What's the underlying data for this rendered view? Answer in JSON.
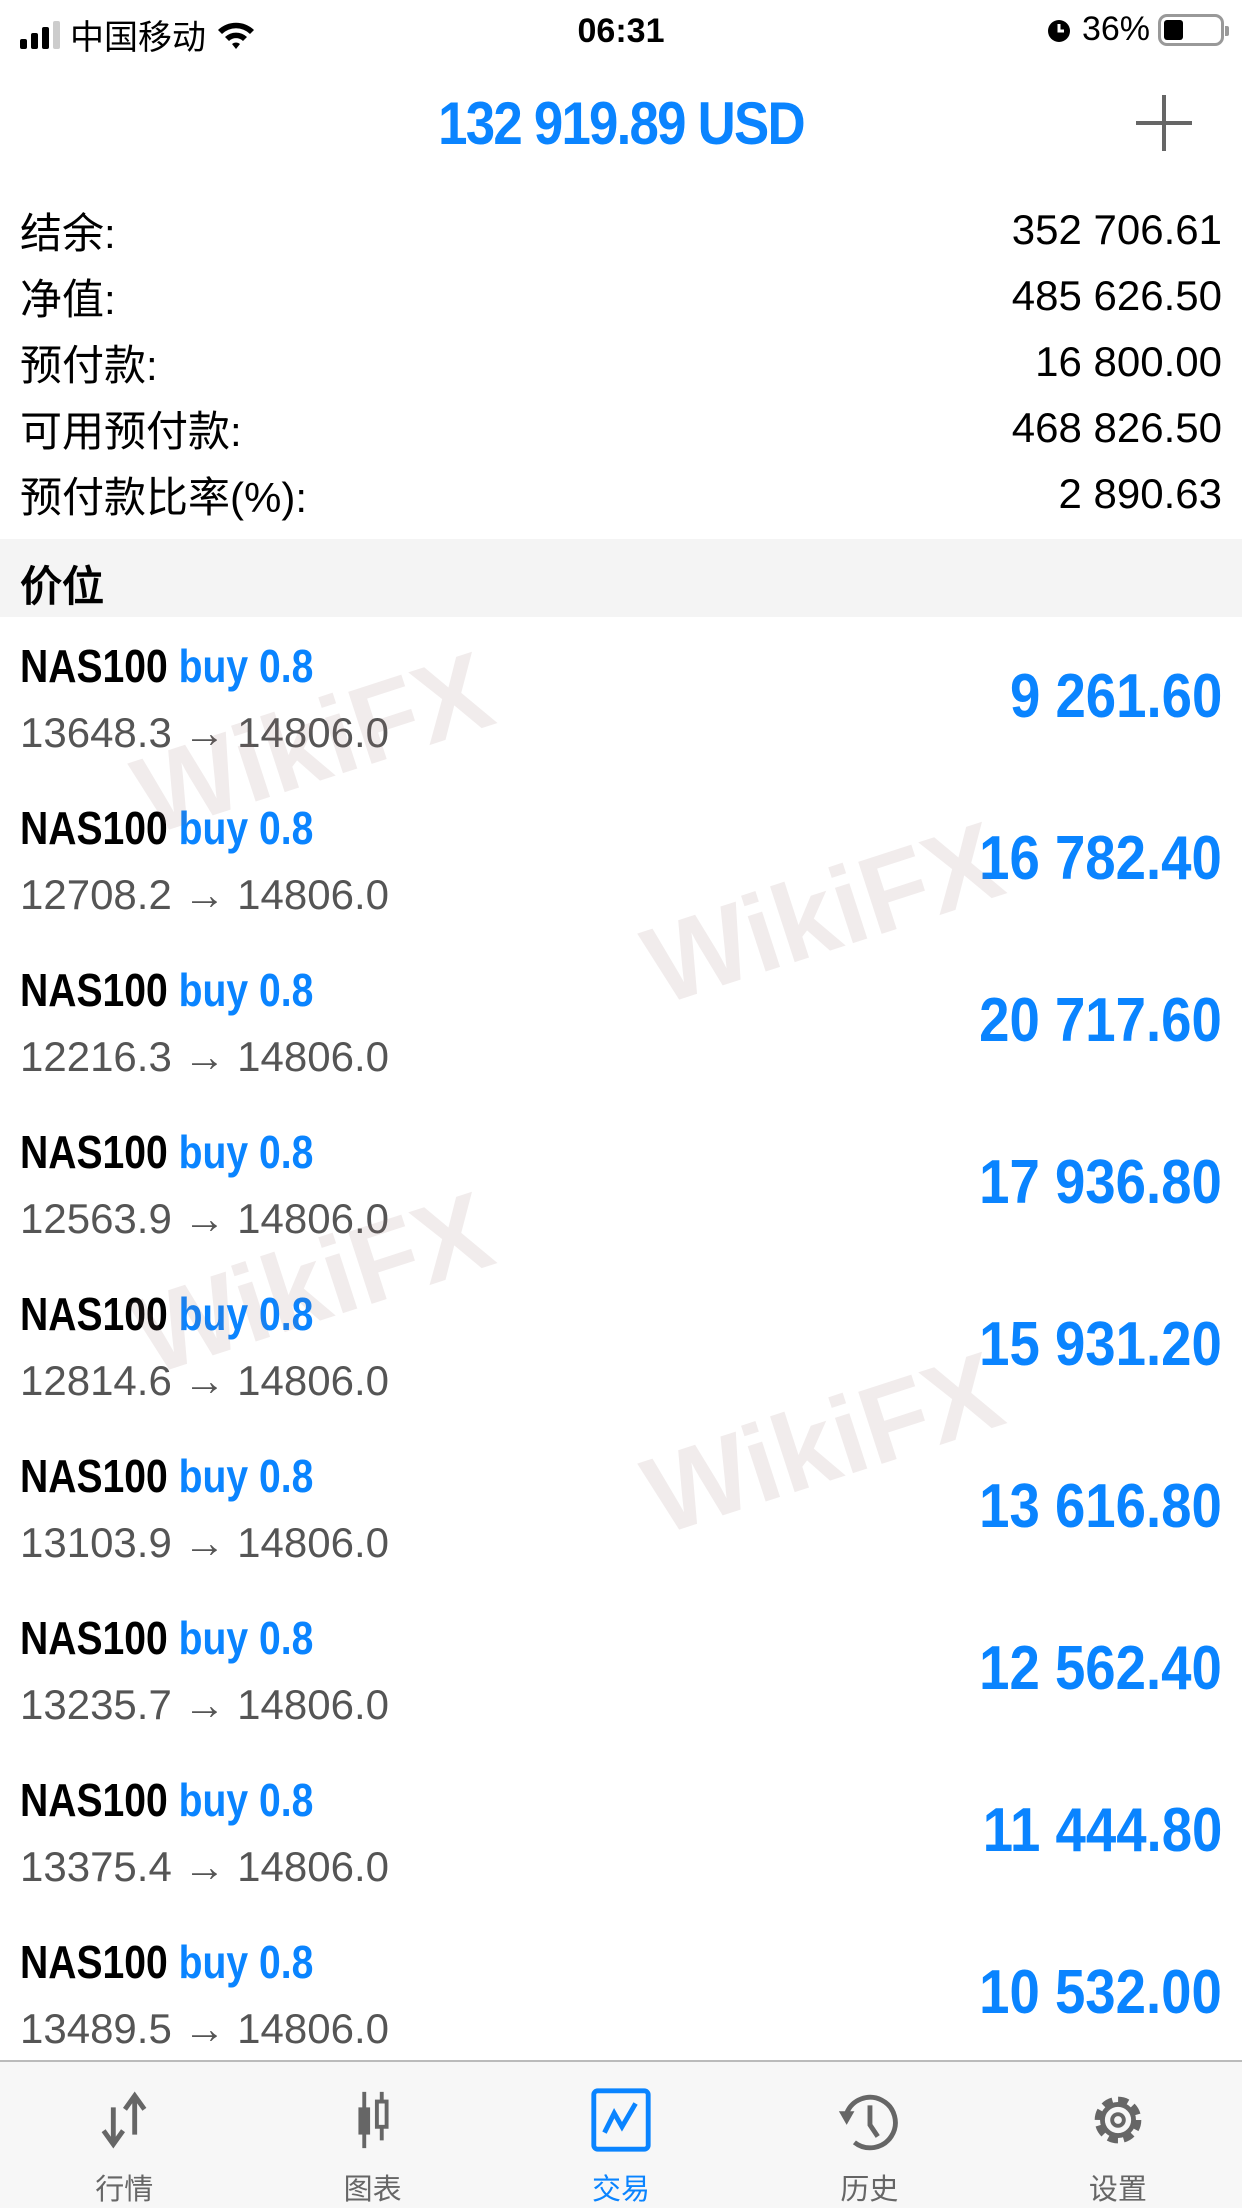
{
  "status_bar": {
    "carrier": "中国移动",
    "time": "06:31",
    "battery": "36%",
    "battery_level": 0.36
  },
  "header": {
    "title": "132 919.89 USD",
    "add_icon": "plus-icon"
  },
  "summary": [
    {
      "label": "结余:",
      "value": "352 706.61"
    },
    {
      "label": "净值:",
      "value": "485 626.50"
    },
    {
      "label": "预付款:",
      "value": "16 800.00"
    },
    {
      "label": "可用预付款:",
      "value": "468 826.50"
    },
    {
      "label": "预付款比率(%):",
      "value": "2 890.63"
    }
  ],
  "section_title": "价位",
  "positions": [
    {
      "symbol": "NAS100",
      "side": "buy 0.8",
      "prices": "13648.3 → 14806.0",
      "profit": "9 261.60"
    },
    {
      "symbol": "NAS100",
      "side": "buy 0.8",
      "prices": "12708.2 → 14806.0",
      "profit": "16 782.40"
    },
    {
      "symbol": "NAS100",
      "side": "buy 0.8",
      "prices": "12216.3 → 14806.0",
      "profit": "20 717.60"
    },
    {
      "symbol": "NAS100",
      "side": "buy 0.8",
      "prices": "12563.9 → 14806.0",
      "profit": "17 936.80"
    },
    {
      "symbol": "NAS100",
      "side": "buy 0.8",
      "prices": "12814.6 → 14806.0",
      "profit": "15 931.20"
    },
    {
      "symbol": "NAS100",
      "side": "buy 0.8",
      "prices": "13103.9 → 14806.0",
      "profit": "13 616.80"
    },
    {
      "symbol": "NAS100",
      "side": "buy 0.8",
      "prices": "13235.7 → 14806.0",
      "profit": "12 562.40"
    },
    {
      "symbol": "NAS100",
      "side": "buy 0.8",
      "prices": "13375.4 → 14806.0",
      "profit": "11 444.80"
    },
    {
      "symbol": "NAS100",
      "side": "buy 0.8",
      "prices": "13489.5 → 14806.0",
      "profit": "10 532.00"
    }
  ],
  "watermark": "WikiFX",
  "tabs": [
    {
      "label": "行情",
      "icon": "quotes-arrows-icon"
    },
    {
      "label": "图表",
      "icon": "candlestick-chart-icon"
    },
    {
      "label": "交易",
      "icon": "trade-chart-icon",
      "active": true
    },
    {
      "label": "历史",
      "icon": "history-clock-icon"
    },
    {
      "label": "设置",
      "icon": "gear-icon"
    }
  ],
  "colors": {
    "accent": "#0a84ff",
    "icon_gray": "#666666"
  }
}
